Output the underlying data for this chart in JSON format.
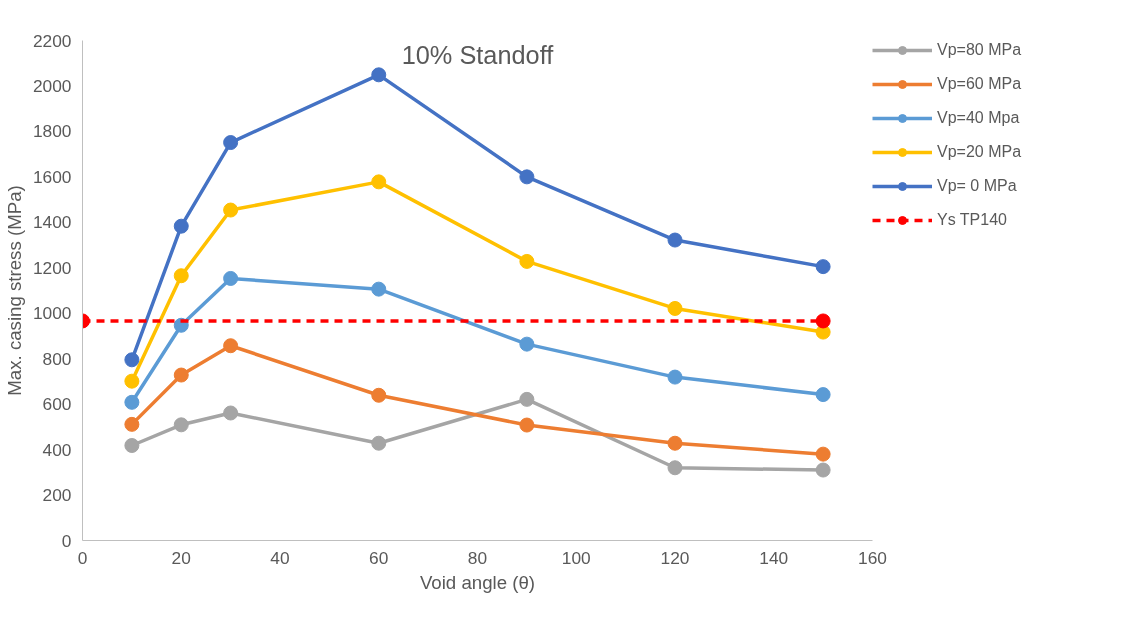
{
  "chart_data": {
    "type": "line",
    "title": "10% Standoff",
    "xlabel": "Void angle (θ)",
    "ylabel": "Max. casing stress (MPa)",
    "x": [
      10,
      20,
      30,
      60,
      90,
      120,
      150
    ],
    "series": [
      {
        "name": "Vp=80 MPa",
        "color": "#a5a5a5",
        "values": [
          418,
          509,
          561,
          428,
          621,
          320,
          310
        ]
      },
      {
        "name": "Vp=60 MPa",
        "color": "#ed7d31",
        "values": [
          511,
          728,
          857,
          639,
          508,
          428,
          380
        ]
      },
      {
        "name": "Vp=40 Mpa",
        "color": "#5b9bd5",
        "values": [
          608,
          947,
          1153,
          1106,
          864,
          719,
          642
        ]
      },
      {
        "name": "Vp=20 MPa",
        "color": "#ffc000",
        "values": [
          701,
          1165,
          1454,
          1578,
          1228,
          1021,
          917
        ]
      },
      {
        "name": "Vp= 0 MPa",
        "color": "#4472c4",
        "values": [
          795,
          1383,
          1751,
          2049,
          1600,
          1322,
          1205
        ]
      },
      {
        "name": "Ys TP140",
        "color": "#ff0000",
        "x": [
          0,
          150
        ],
        "values": [
          966,
          966
        ],
        "line_style": "dashed"
      }
    ],
    "xlim": [
      0,
      160
    ],
    "xticks": [
      0,
      20,
      40,
      60,
      80,
      100,
      120,
      140,
      160
    ],
    "ylim": [
      0,
      2200
    ],
    "yticks": [
      0,
      200,
      400,
      600,
      800,
      1000,
      1200,
      1400,
      1600,
      1800,
      2000,
      2200
    ],
    "grid": false,
    "legend": "right",
    "marker": "circle",
    "line_style": "solid"
  }
}
